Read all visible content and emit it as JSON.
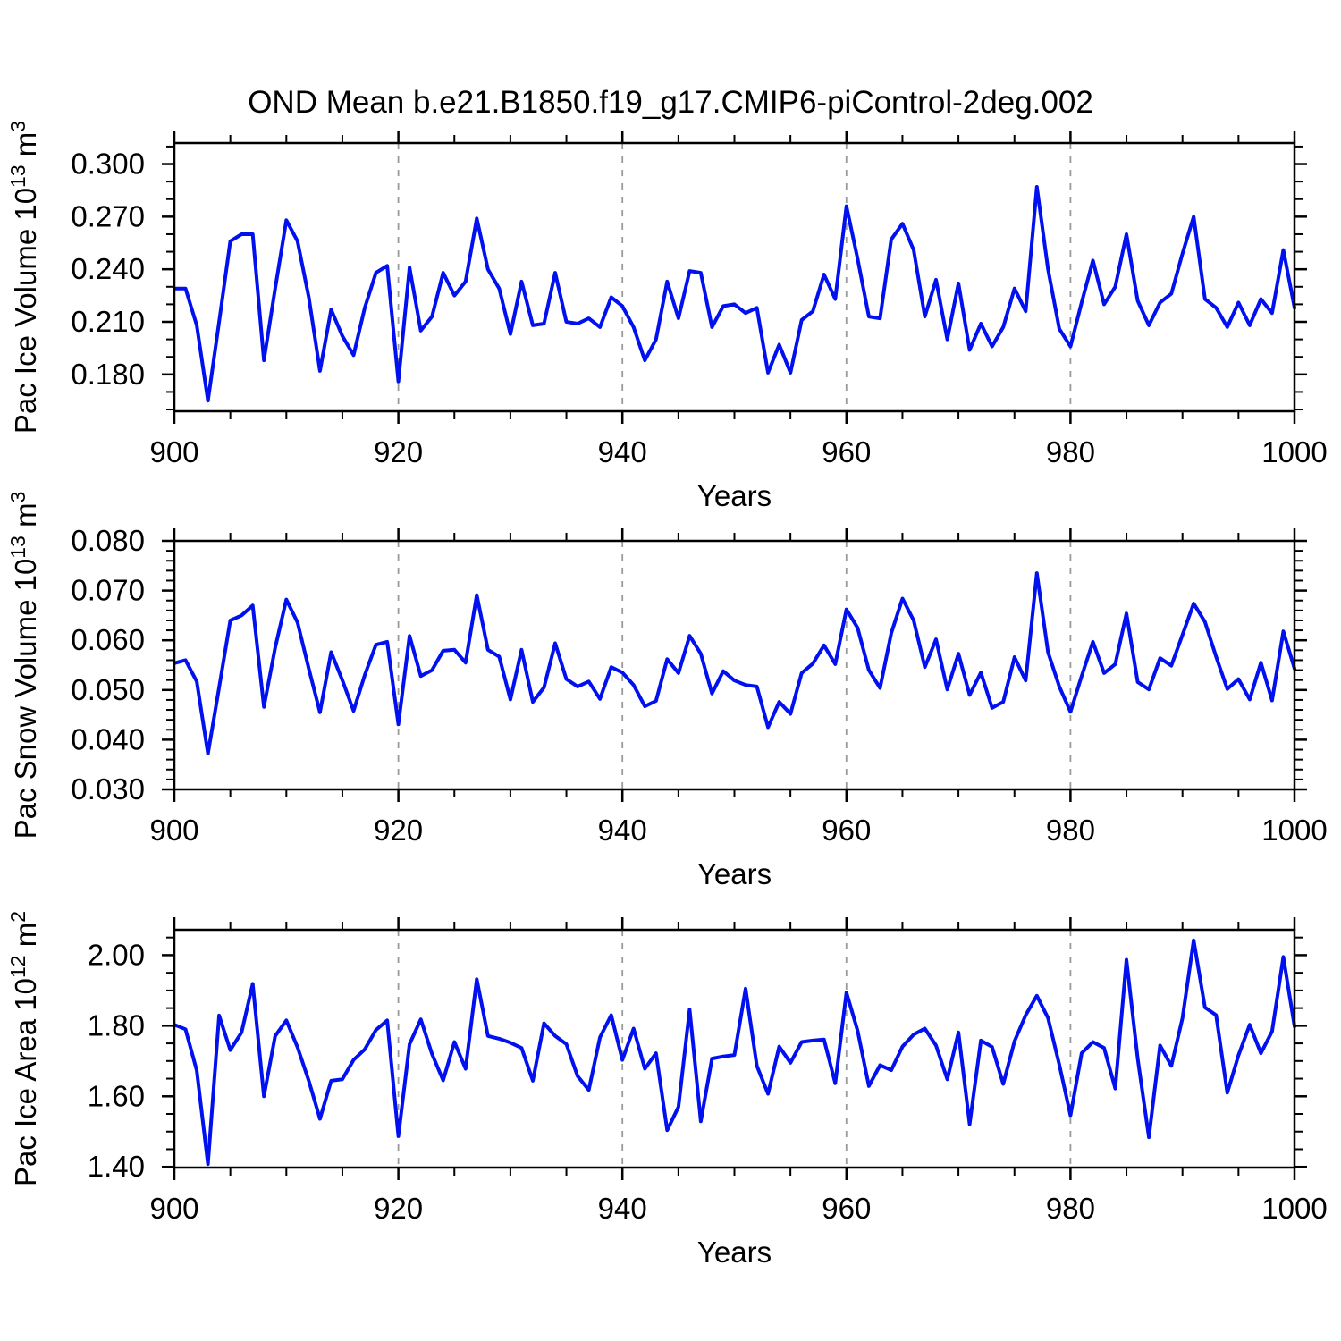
{
  "title": "OND Mean b.e21.B1850.f19_g17.CMIP6-piControl-2deg.002",
  "colors": {
    "line": "#0010EE",
    "grid": "#9a9a9a",
    "axis": "#000000",
    "background": "#ffffff"
  },
  "years": [
    900,
    901,
    902,
    903,
    904,
    905,
    906,
    907,
    908,
    909,
    910,
    911,
    912,
    913,
    914,
    915,
    916,
    917,
    918,
    919,
    920,
    921,
    922,
    923,
    924,
    925,
    926,
    927,
    928,
    929,
    930,
    931,
    932,
    933,
    934,
    935,
    936,
    937,
    938,
    939,
    940,
    941,
    942,
    943,
    944,
    945,
    946,
    947,
    948,
    949,
    950,
    951,
    952,
    953,
    954,
    955,
    956,
    957,
    958,
    959,
    960,
    961,
    962,
    963,
    964,
    965,
    966,
    967,
    968,
    969,
    970,
    971,
    972,
    973,
    974,
    975,
    976,
    977,
    978,
    979,
    980,
    981,
    982,
    983,
    984,
    985,
    986,
    987,
    988,
    989,
    990,
    991,
    992,
    993,
    994,
    995,
    996,
    997,
    998,
    999,
    1000
  ],
  "chart_data": [
    {
      "type": "line",
      "series_name": "pac-ice-volume",
      "ylabel_plain": "Pac Ice Volume 10^13 m^3",
      "ylabel_segments": [
        {
          "text": "Pac Ice Volume 10"
        },
        {
          "text": "13",
          "sup": true
        },
        {
          "text": " m"
        },
        {
          "text": "3",
          "sup": true
        }
      ],
      "xlabel": "Years",
      "xlim": [
        900,
        1000
      ],
      "xticks": [
        900,
        920,
        940,
        960,
        980,
        1000
      ],
      "xtick_labels": [
        "900",
        "920",
        "940",
        "960",
        "980",
        "1000"
      ],
      "x_minor_step": 5,
      "ylim": [
        0.159,
        0.312
      ],
      "yticks": [
        0.18,
        0.21,
        0.24,
        0.27,
        0.3
      ],
      "ytick_labels": [
        "0.180",
        "0.210",
        "0.240",
        "0.270",
        "0.300"
      ],
      "y_minor_step": 0.01,
      "grid_x": [
        920,
        940,
        960,
        980
      ],
      "values": [
        0.229,
        0.229,
        0.208,
        0.165,
        0.21,
        0.256,
        0.26,
        0.26,
        0.188,
        0.229,
        0.268,
        0.256,
        0.224,
        0.182,
        0.217,
        0.202,
        0.191,
        0.218,
        0.238,
        0.242,
        0.176,
        0.241,
        0.205,
        0.213,
        0.238,
        0.225,
        0.233,
        0.269,
        0.24,
        0.229,
        0.203,
        0.233,
        0.208,
        0.209,
        0.238,
        0.21,
        0.209,
        0.212,
        0.207,
        0.224,
        0.219,
        0.207,
        0.188,
        0.2,
        0.233,
        0.212,
        0.239,
        0.238,
        0.207,
        0.219,
        0.22,
        0.215,
        0.218,
        0.181,
        0.197,
        0.181,
        0.211,
        0.216,
        0.237,
        0.223,
        0.276,
        0.246,
        0.213,
        0.212,
        0.257,
        0.266,
        0.251,
        0.213,
        0.234,
        0.2,
        0.232,
        0.194,
        0.209,
        0.196,
        0.207,
        0.229,
        0.216,
        0.287,
        0.24,
        0.206,
        0.196,
        0.221,
        0.245,
        0.22,
        0.23,
        0.26,
        0.222,
        0.208,
        0.221,
        0.226,
        0.249,
        0.27,
        0.223,
        0.218,
        0.207,
        0.221,
        0.208,
        0.223,
        0.215,
        0.251,
        0.218
      ]
    },
    {
      "type": "line",
      "series_name": "pac-snow-volume",
      "ylabel_plain": "Pac Snow Volume 10^13 m^3",
      "ylabel_segments": [
        {
          "text": "Pac Snow Volume 10"
        },
        {
          "text": "13",
          "sup": true
        },
        {
          "text": " m"
        },
        {
          "text": "3",
          "sup": true
        }
      ],
      "xlabel": "Years",
      "xlim": [
        900,
        1000
      ],
      "xticks": [
        900,
        920,
        940,
        960,
        980,
        1000
      ],
      "xtick_labels": [
        "900",
        "920",
        "940",
        "960",
        "980",
        "1000"
      ],
      "x_minor_step": 5,
      "ylim": [
        0.03,
        0.08
      ],
      "yticks": [
        0.03,
        0.04,
        0.05,
        0.06,
        0.07,
        0.08
      ],
      "ytick_labels": [
        "0.030",
        "0.040",
        "0.050",
        "0.060",
        "0.070",
        "0.080"
      ],
      "y_minor_step": 0.002,
      "grid_x": [
        920,
        940,
        960,
        980
      ],
      "values": [
        0.0554,
        0.056,
        0.0517,
        0.0372,
        0.0505,
        0.064,
        0.065,
        0.067,
        0.0466,
        0.0585,
        0.0682,
        0.0636,
        0.0543,
        0.0455,
        0.0576,
        0.052,
        0.0458,
        0.053,
        0.0591,
        0.0597,
        0.0431,
        0.0609,
        0.0528,
        0.054,
        0.0579,
        0.0581,
        0.0555,
        0.0691,
        0.0581,
        0.0567,
        0.0481,
        0.0581,
        0.0476,
        0.0505,
        0.0594,
        0.0522,
        0.0507,
        0.0517,
        0.0482,
        0.0546,
        0.0535,
        0.051,
        0.0467,
        0.0478,
        0.0562,
        0.0534,
        0.0609,
        0.0573,
        0.0493,
        0.0538,
        0.0519,
        0.051,
        0.0507,
        0.0425,
        0.0476,
        0.0452,
        0.0534,
        0.0553,
        0.059,
        0.0552,
        0.0662,
        0.0625,
        0.054,
        0.0504,
        0.0614,
        0.0684,
        0.064,
        0.0546,
        0.0602,
        0.0501,
        0.0573,
        0.049,
        0.0535,
        0.0464,
        0.0476,
        0.0566,
        0.0519,
        0.0735,
        0.0576,
        0.0507,
        0.0456,
        0.0528,
        0.0597,
        0.0534,
        0.0552,
        0.0654,
        0.0516,
        0.0501,
        0.0564,
        0.0549,
        0.0611,
        0.0674,
        0.0637,
        0.0567,
        0.0502,
        0.0522,
        0.0481,
        0.0555,
        0.0479,
        0.0618,
        0.0543
      ]
    },
    {
      "type": "line",
      "series_name": "pac-ice-area",
      "ylabel_plain": "Pac Ice Area 10^12 m^2",
      "ylabel_segments": [
        {
          "text": "Pac Ice Area 10"
        },
        {
          "text": "12",
          "sup": true
        },
        {
          "text": " m"
        },
        {
          "text": "2",
          "sup": true
        }
      ],
      "xlabel": "Years",
      "xlim": [
        900,
        1000
      ],
      "xticks": [
        900,
        920,
        940,
        960,
        980,
        1000
      ],
      "xtick_labels": [
        "900",
        "920",
        "940",
        "960",
        "980",
        "1000"
      ],
      "x_minor_step": 5,
      "ylim": [
        1.398,
        2.072
      ],
      "yticks": [
        1.4,
        1.6,
        1.8,
        2.0
      ],
      "ytick_labels": [
        "1.40",
        "1.60",
        "1.80",
        "2.00"
      ],
      "y_minor_step": 0.05,
      "grid_x": [
        920,
        940,
        960,
        980
      ],
      "values": [
        1.803,
        1.79,
        1.673,
        1.408,
        1.829,
        1.731,
        1.781,
        1.919,
        1.6,
        1.771,
        1.815,
        1.739,
        1.644,
        1.536,
        1.644,
        1.648,
        1.703,
        1.733,
        1.788,
        1.815,
        1.487,
        1.748,
        1.818,
        1.72,
        1.645,
        1.754,
        1.678,
        1.932,
        1.771,
        1.763,
        1.752,
        1.737,
        1.644,
        1.807,
        1.771,
        1.748,
        1.657,
        1.618,
        1.767,
        1.83,
        1.703,
        1.792,
        1.678,
        1.722,
        1.504,
        1.57,
        1.846,
        1.529,
        1.707,
        1.713,
        1.717,
        1.905,
        1.686,
        1.607,
        1.741,
        1.695,
        1.754,
        1.758,
        1.761,
        1.637,
        1.894,
        1.786,
        1.629,
        1.688,
        1.674,
        1.741,
        1.775,
        1.792,
        1.744,
        1.648,
        1.781,
        1.521,
        1.758,
        1.74,
        1.635,
        1.756,
        1.83,
        1.885,
        1.822,
        1.69,
        1.546,
        1.722,
        1.754,
        1.737,
        1.622,
        1.987,
        1.707,
        1.484,
        1.744,
        1.686,
        1.822,
        2.042,
        1.852,
        1.83,
        1.61,
        1.716,
        1.803,
        1.722,
        1.784,
        1.995,
        1.798
      ]
    }
  ]
}
